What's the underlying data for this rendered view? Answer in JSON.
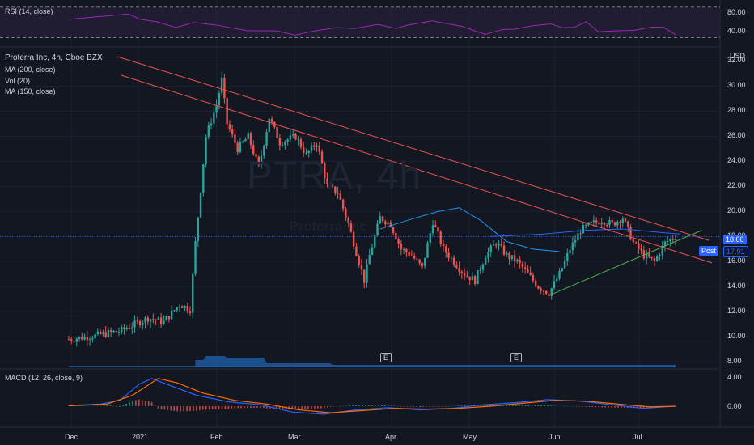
{
  "header": {
    "symbol_line": "Proterra Inc, 4h, Cboe BZX",
    "indicators": [
      "MA (200, close)",
      "Vol (20)",
      "MA (150, close)"
    ],
    "currency": "USD"
  },
  "rsi_pane": {
    "label": "RSI (14, close)",
    "levels": [
      "80.00",
      "40.00"
    ]
  },
  "macd_pane": {
    "label": "MACD (12, 26, close, 9)",
    "levels": [
      "4.00",
      "0.00"
    ]
  },
  "watermark": {
    "main": "PTRA, 4h",
    "sub": "Proterra Inc"
  },
  "price_tags": {
    "last": "18.00",
    "post_label": "Post",
    "post": "17.91"
  },
  "earnings_markers": [
    "E",
    "E"
  ],
  "colors": {
    "up": "#26a69a",
    "down": "#ef5350",
    "resistance": "#ef5350",
    "support": "#4caf50",
    "ma200": "#2962ff",
    "ma150": "#2196f3",
    "rsi": "#9c27b0",
    "macd": "#2962ff",
    "signal": "#ff6d00"
  },
  "chart_data": {
    "type": "candlestick",
    "y_axis_ticks": [
      "32.00",
      "30.00",
      "28.00",
      "26.00",
      "24.00",
      "22.00",
      "20.00",
      "18.00",
      "16.00",
      "14.00",
      "12.00",
      "10.00",
      "8.00"
    ],
    "x_axis_ticks": [
      "Dec",
      "2021",
      "Feb",
      "Mar",
      "Apr",
      "May",
      "Jun",
      "Jul"
    ],
    "ylim": [
      7.5,
      33
    ],
    "price_path": [
      [
        0,
        9.8
      ],
      [
        10,
        10.1
      ],
      [
        20,
        10.5
      ],
      [
        30,
        11.5
      ],
      [
        36,
        11.2
      ],
      [
        42,
        12.6
      ],
      [
        46,
        12.2
      ],
      [
        48,
        17.5
      ],
      [
        52,
        26
      ],
      [
        56,
        28.5
      ],
      [
        58,
        30.5
      ],
      [
        60,
        27
      ],
      [
        64,
        25
      ],
      [
        68,
        26
      ],
      [
        72,
        23.5
      ],
      [
        76,
        27.5
      ],
      [
        80,
        25.5
      ],
      [
        86,
        26
      ],
      [
        90,
        24.5
      ],
      [
        94,
        25.5
      ],
      [
        98,
        22
      ],
      [
        102,
        21.5
      ],
      [
        106,
        19
      ],
      [
        110,
        16
      ],
      [
        112,
        14.5
      ],
      [
        114,
        16.5
      ],
      [
        118,
        19.5
      ],
      [
        122,
        19
      ],
      [
        126,
        17
      ],
      [
        130,
        16.5
      ],
      [
        134,
        15.5
      ],
      [
        138,
        19.2
      ],
      [
        142,
        17
      ],
      [
        146,
        16
      ],
      [
        150,
        15
      ],
      [
        154,
        14.5
      ],
      [
        158,
        16.5
      ],
      [
        162,
        17.5
      ],
      [
        166,
        16.5
      ],
      [
        170,
        16
      ],
      [
        174,
        15
      ],
      [
        178,
        14
      ],
      [
        182,
        13.5
      ],
      [
        186,
        15
      ],
      [
        190,
        17
      ],
      [
        194,
        18.5
      ],
      [
        198,
        19
      ],
      [
        202,
        19.3
      ],
      [
        206,
        19
      ],
      [
        210,
        19.5
      ],
      [
        214,
        17.5
      ],
      [
        218,
        16.5
      ],
      [
        222,
        16
      ],
      [
        226,
        17.5
      ],
      [
        230,
        18
      ]
    ],
    "x_range": [
      0,
      230
    ],
    "ma200_path": [
      [
        118,
        18.6
      ],
      [
        130,
        19.4
      ],
      [
        140,
        20
      ],
      [
        148,
        20.3
      ],
      [
        156,
        19.3
      ],
      [
        166,
        17.6
      ],
      [
        176,
        17
      ],
      [
        186,
        16.8
      ]
    ],
    "ma150_path": [
      [
        160,
        18
      ],
      [
        180,
        18.2
      ],
      [
        196,
        18.5
      ],
      [
        210,
        18.6
      ],
      [
        226,
        18.3
      ],
      [
        232,
        18.2
      ]
    ],
    "resistance_line_1": [
      [
        0,
        33
      ],
      [
        240,
        17.7
      ]
    ],
    "resistance_line_2": [
      [
        0,
        31.5
      ],
      [
        240,
        16
      ]
    ],
    "support_line": [
      [
        182,
        13.3
      ],
      [
        240,
        18.5
      ]
    ],
    "rsi_range": [
      30,
      85
    ],
    "rsi_path": [
      [
        0,
        64
      ],
      [
        10,
        66
      ],
      [
        20,
        73
      ],
      [
        24,
        63
      ],
      [
        30,
        60
      ],
      [
        36,
        55
      ],
      [
        42,
        58
      ],
      [
        50,
        57
      ],
      [
        60,
        50
      ],
      [
        70,
        47
      ],
      [
        76,
        45
      ],
      [
        82,
        48
      ],
      [
        90,
        52
      ],
      [
        96,
        54
      ],
      [
        104,
        56
      ],
      [
        110,
        52
      ],
      [
        114,
        58
      ],
      [
        122,
        60
      ],
      [
        132,
        56
      ],
      [
        140,
        45
      ],
      [
        146,
        49
      ],
      [
        150,
        53
      ],
      [
        156,
        55
      ],
      [
        162,
        57
      ],
      [
        166,
        55
      ],
      [
        170,
        52
      ],
      [
        174,
        61
      ],
      [
        178,
        49
      ],
      [
        184,
        47
      ],
      [
        190,
        51
      ],
      [
        196,
        54
      ],
      [
        200,
        52
      ],
      [
        204,
        46
      ]
    ],
    "macd_range": [
      -1.5,
      4.5
    ],
    "macd_path": [
      [
        0,
        0.1
      ],
      [
        10,
        0.3
      ],
      [
        16,
        0.8
      ],
      [
        22,
        3
      ],
      [
        26,
        3.8
      ],
      [
        32,
        2.8
      ],
      [
        40,
        1.5
      ],
      [
        50,
        0.6
      ],
      [
        60,
        0.2
      ],
      [
        70,
        -0.8
      ],
      [
        80,
        -1.1
      ],
      [
        90,
        -0.5
      ],
      [
        100,
        -0.2
      ],
      [
        110,
        -0.5
      ],
      [
        120,
        -0.3
      ],
      [
        130,
        0.2
      ],
      [
        140,
        0.5
      ],
      [
        150,
        0.9
      ],
      [
        160,
        0.7
      ],
      [
        170,
        0.2
      ],
      [
        180,
        -0.3
      ],
      [
        186,
        -0.1
      ],
      [
        190,
        0
      ]
    ],
    "signal_path": [
      [
        0,
        0.05
      ],
      [
        12,
        0.3
      ],
      [
        20,
        1.5
      ],
      [
        28,
        3.8
      ],
      [
        34,
        3.2
      ],
      [
        42,
        1.8
      ],
      [
        52,
        0.8
      ],
      [
        62,
        0.3
      ],
      [
        72,
        -0.5
      ],
      [
        82,
        -0.9
      ],
      [
        92,
        -0.6
      ],
      [
        102,
        -0.3
      ],
      [
        112,
        -0.4
      ],
      [
        122,
        -0.3
      ],
      [
        132,
        0
      ],
      [
        142,
        0.4
      ],
      [
        152,
        0.8
      ],
      [
        162,
        0.7
      ],
      [
        172,
        0.3
      ],
      [
        182,
        -0.1
      ],
      [
        190,
        0
      ]
    ]
  }
}
